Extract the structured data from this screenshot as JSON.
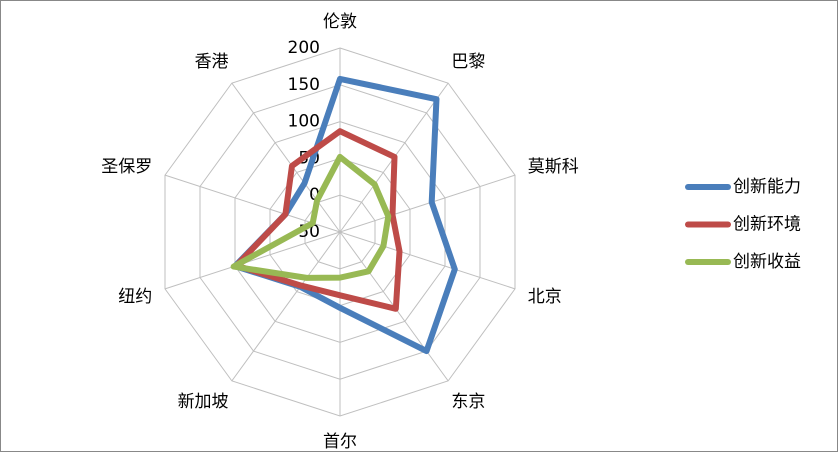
{
  "chart_data": {
    "type": "radar",
    "categories": [
      "伦敦",
      "巴黎",
      "莫斯科",
      "北京",
      "东京",
      "首尔",
      "新加坡",
      "纽约",
      "圣保罗",
      "香港"
    ],
    "series": [
      {
        "name": "创新能力",
        "color": "#4a7ebb",
        "values": [
          158,
          173,
          81,
          114,
          150,
          53,
          42,
          100,
          28,
          32
        ]
      },
      {
        "name": "创新环境",
        "color": "#be4b48",
        "values": [
          87,
          76,
          25,
          35,
          79,
          36,
          40,
          98,
          28,
          61
        ]
      },
      {
        "name": "创新收益",
        "color": "#98b954",
        "values": [
          52,
          30,
          19,
          12,
          16,
          12,
          27,
          102,
          -11,
          3
        ]
      }
    ],
    "ylim": [
      -50,
      200
    ],
    "yticks": [
      -50,
      0,
      50,
      100,
      150,
      200
    ],
    "grid": true,
    "legend": "right"
  }
}
